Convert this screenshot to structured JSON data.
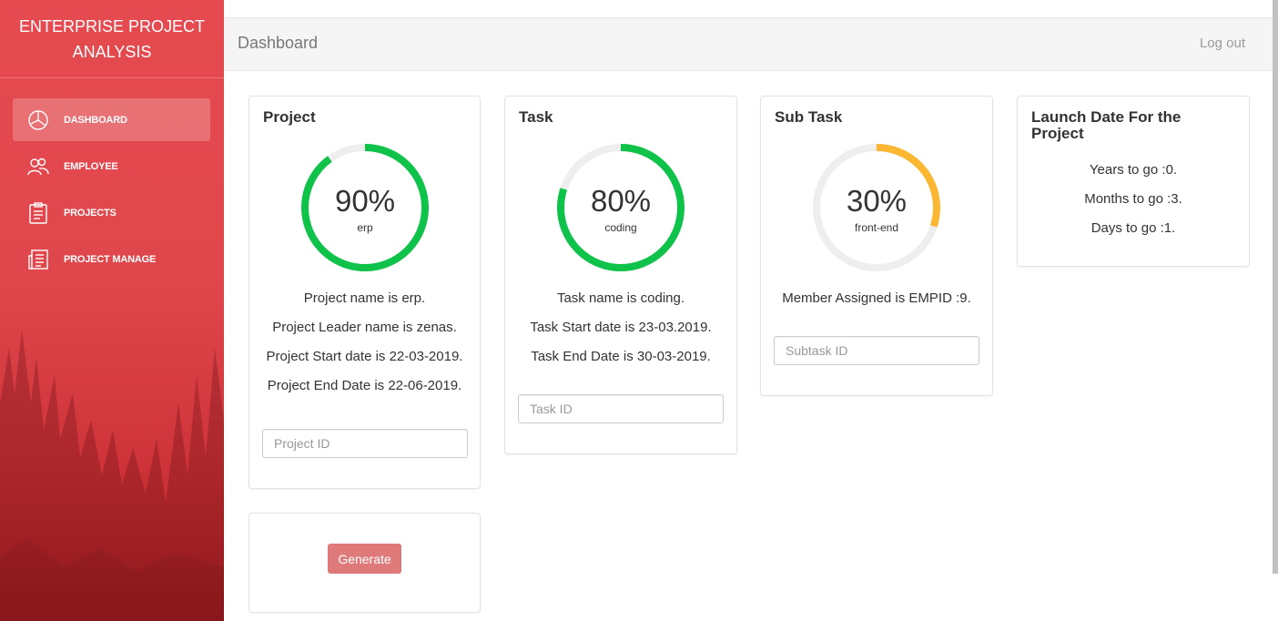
{
  "sidebar": {
    "brand": "ENTERPRISE PROJECT ANALYSIS",
    "items": [
      {
        "label": "DASHBOARD",
        "icon": "pie-chart-icon",
        "active": true
      },
      {
        "label": "EMPLOYEE",
        "icon": "users-icon",
        "active": false
      },
      {
        "label": "PROJECTS",
        "icon": "clipboard-icon",
        "active": false
      },
      {
        "label": "PROJECT MANAGE",
        "icon": "news-icon",
        "active": false
      }
    ],
    "colors": {
      "gradient_top": "#e44a4f",
      "gradient_bottom": "#a81e23"
    }
  },
  "header": {
    "title": "Dashboard",
    "logout_label": "Log out"
  },
  "cards": {
    "project": {
      "title": "Project",
      "percent_label": "90%",
      "percent": 90,
      "subtitle": "erp",
      "ring_color": "#0ec24a",
      "lines": [
        "Project name is erp.",
        "Project Leader name is zenas.",
        "Project Start date is 22-03-2019.",
        "Project End Date is 22-06-2019."
      ],
      "input_placeholder": "Project ID"
    },
    "task": {
      "title": "Task",
      "percent_label": "80%",
      "percent": 80,
      "subtitle": "coding",
      "ring_color": "#0ec24a",
      "lines": [
        "Task name is coding.",
        "Task Start date is 23-03.2019.",
        "Task End Date is 30-03-2019."
      ],
      "input_placeholder": "Task ID"
    },
    "subtask": {
      "title": "Sub Task",
      "percent_label": "30%",
      "percent": 30,
      "subtitle": "front-end",
      "ring_color": "#fbb731",
      "lines": [
        "Member Assigned is EMPID :9."
      ],
      "input_placeholder": "Subtask ID"
    },
    "launch": {
      "title": "Launch Date For the Project",
      "lines": [
        "Years to go :0.",
        "Months to go :3.",
        "Days to go :1."
      ]
    },
    "generate": {
      "button_label": "Generate",
      "button_color": "#e07a7a"
    }
  },
  "ring_track_color": "#eeeeee"
}
